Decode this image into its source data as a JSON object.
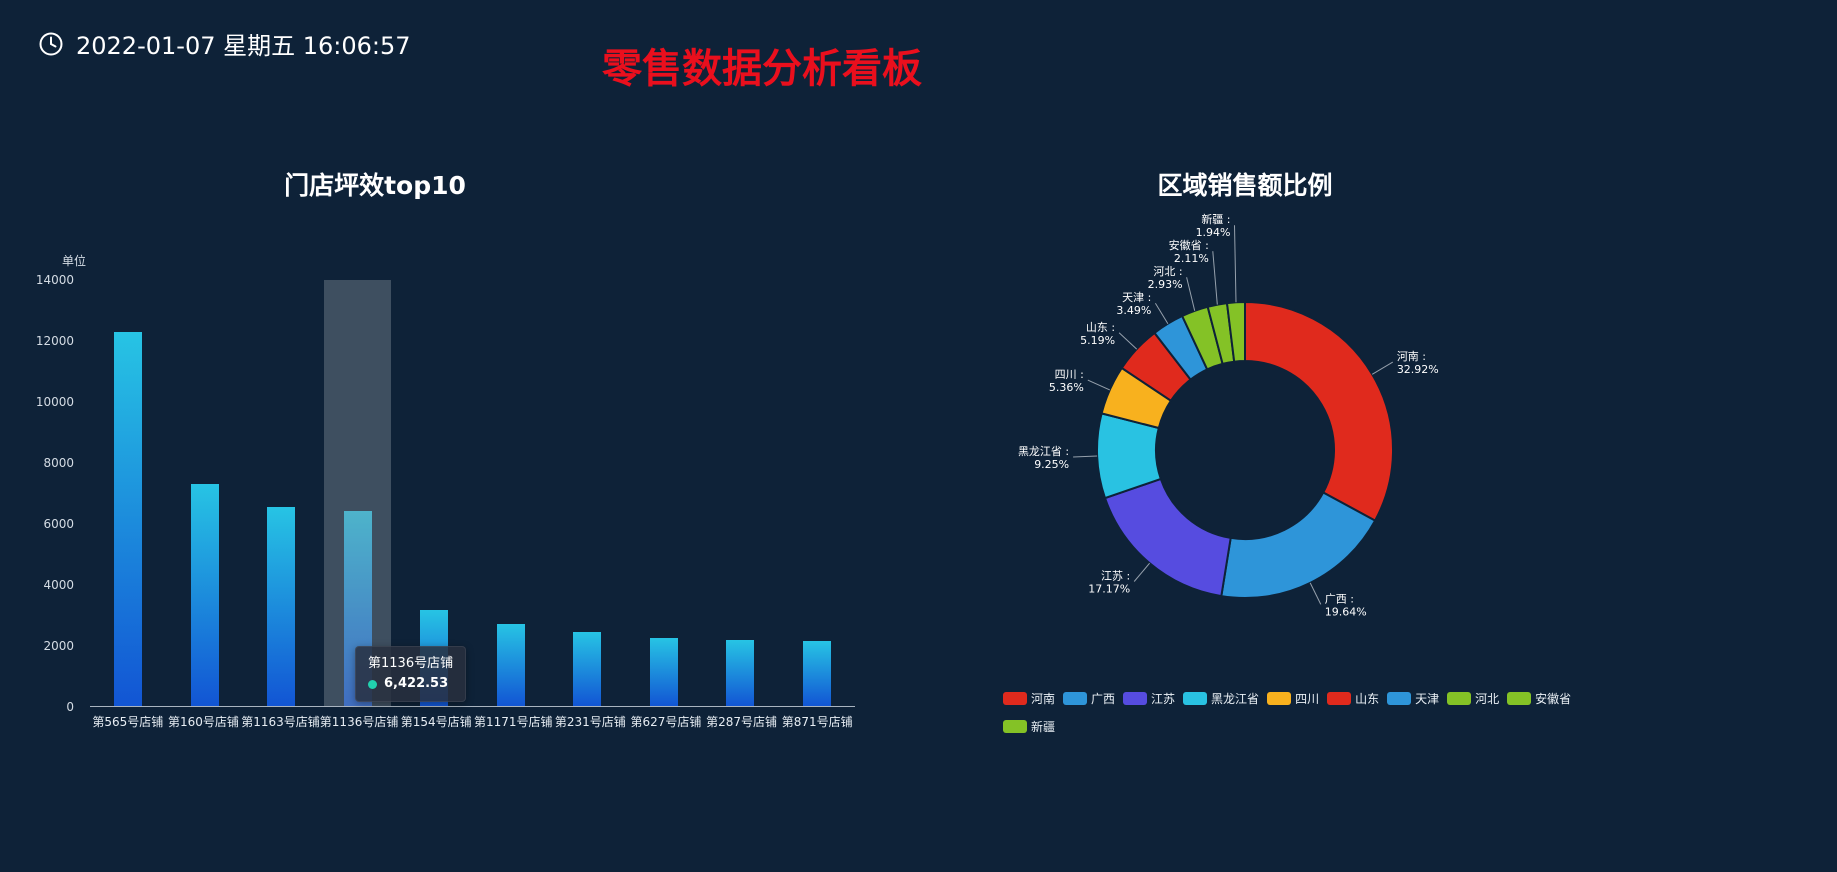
{
  "header": {
    "time": "2022-01-07 星期五 16:06:57",
    "title": "零售数据分析看板",
    "title_color": "#ea0f1d"
  },
  "chart_data": [
    {
      "type": "bar",
      "title": "门店坪效top10",
      "ylabel": "单位",
      "xlabel": "",
      "categories": [
        "第565号店铺",
        "第160号店铺",
        "第1163号店铺",
        "第1136号店铺",
        "第154号店铺",
        "第1171号店铺",
        "第231号店铺",
        "第627号店铺",
        "第287号店铺",
        "第871号店铺"
      ],
      "values": [
        12300,
        7300,
        6550,
        6422.53,
        3150,
        2700,
        2430,
        2250,
        2180,
        2150
      ],
      "ylim": [
        0,
        14000
      ],
      "y_ticks": [
        0,
        2000,
        4000,
        6000,
        8000,
        10000,
        12000,
        14000
      ],
      "grid": false,
      "highlight_index": 3,
      "tooltip": {
        "name": "第1136号店铺",
        "value": "6,422.53",
        "dot_color": "#21d1ae"
      },
      "colors": {
        "bar_top": "#27c4e4",
        "bar_bottom": "#1255d4",
        "hover_band": "rgba(141,152,163,0.38)"
      }
    },
    {
      "type": "pie",
      "title": "区域销售额比例",
      "donut": true,
      "border_color": "#0e2238",
      "slices": [
        {
          "name": "河南",
          "percent": 32.92,
          "color": "#e02a1d"
        },
        {
          "name": "广西",
          "percent": 19.64,
          "color": "#2e95d9"
        },
        {
          "name": "江苏",
          "percent": 17.17,
          "color": "#564ce0"
        },
        {
          "name": "黑龙江省",
          "percent": 9.25,
          "color": "#29c2e2"
        },
        {
          "name": "四川",
          "percent": 5.36,
          "color": "#f8b11e"
        },
        {
          "name": "山东",
          "percent": 5.19,
          "color": "#e02a1d"
        },
        {
          "name": "天津",
          "percent": 3.49,
          "color": "#2e95d9"
        },
        {
          "name": "河北",
          "percent": 2.93,
          "color": "#84c226"
        },
        {
          "name": "安徽省",
          "percent": 2.11,
          "color": "#84c226"
        },
        {
          "name": "新疆",
          "percent": 1.94,
          "color": "#84c226"
        }
      ],
      "legend_position": "bottom",
      "legend_rows": [
        [
          "河南",
          "广西",
          "江苏",
          "黑龙江省",
          "四川",
          "山东",
          "天津",
          "河北",
          "安徽省"
        ],
        [
          "新疆"
        ]
      ]
    }
  ]
}
